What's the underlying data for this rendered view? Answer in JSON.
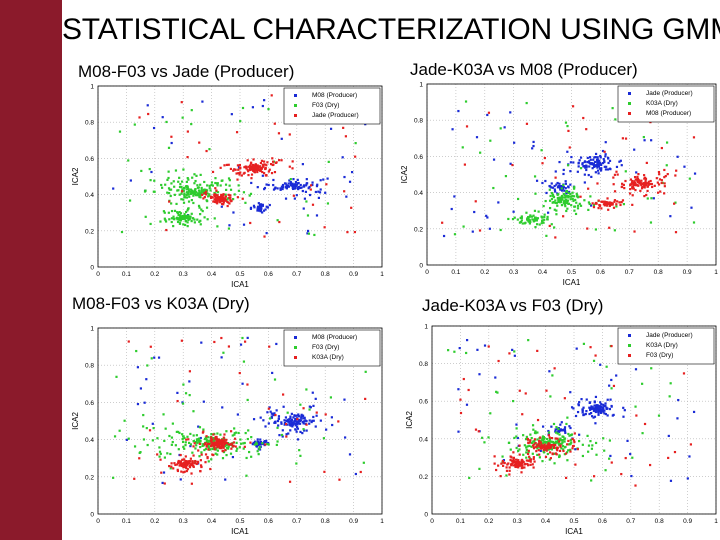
{
  "slide": {
    "title": "STATISTICAL CHARACTERIZATION USING GMM",
    "accent_color": "#8b1a2b"
  },
  "panels": {
    "p1_title": "M08-F03 vs Jade (Producer)",
    "p2_title": "Jade-K03A vs M08 (Producer)",
    "p3_title": "M08-F03 vs K03A (Dry)",
    "p4_title": "Jade-K03A vs F03 (Dry)"
  },
  "chart_data": [
    {
      "type": "scatter",
      "title": "M08-F03 vs Jade (Producer)",
      "xlabel": "ICA1",
      "ylabel": "ICA2",
      "xlim": [
        0,
        1
      ],
      "ylim": [
        0,
        1
      ],
      "xticks": [
        "0",
        "0.1",
        "0.2",
        "0.3",
        "0.4",
        "0.5",
        "0.6",
        "0.7",
        "0.8",
        "0.9",
        "1"
      ],
      "yticks": [
        "0",
        "0.2",
        "0.4",
        "0.6",
        "0.8",
        "1"
      ],
      "grid": true,
      "legend_position": "top-right",
      "series": [
        {
          "name": "M08 (Producer)",
          "color": "#1a2bd6",
          "clusters": [
            [
              0.69,
              0.45,
              0.06,
              0.025,
              60
            ],
            [
              0.57,
              0.33,
              0.02,
              0.015,
              20
            ]
          ]
        },
        {
          "name": "F03 (Dry)",
          "color": "#2ecc2e",
          "clusters": [
            [
              0.35,
              0.42,
              0.09,
              0.04,
              110
            ],
            [
              0.3,
              0.27,
              0.04,
              0.025,
              60
            ]
          ]
        },
        {
          "name": "Jade (Producer)",
          "color": "#e62020",
          "clusters": [
            [
              0.55,
              0.55,
              0.05,
              0.03,
              80
            ],
            [
              0.43,
              0.38,
              0.03,
              0.02,
              60
            ]
          ]
        }
      ]
    },
    {
      "type": "scatter",
      "title": "Jade-K03A vs M08 (Producer)",
      "xlabel": "ICA1",
      "ylabel": "ICA2",
      "xlim": [
        0,
        1
      ],
      "ylim": [
        0,
        1
      ],
      "xticks": [
        "0",
        "0.1",
        "0.2",
        "0.3",
        "0.4",
        "0.5",
        "0.6",
        "0.7",
        "0.8",
        "0.9",
        "1"
      ],
      "yticks": [
        "0",
        "0.2",
        "0.4",
        "0.6",
        "0.8",
        "1"
      ],
      "grid": true,
      "legend_position": "top-right",
      "series": [
        {
          "name": "Jade (Producer)",
          "color": "#1a2bd6",
          "clusters": [
            [
              0.58,
              0.56,
              0.05,
              0.03,
              70
            ],
            [
              0.46,
              0.43,
              0.03,
              0.02,
              30
            ]
          ]
        },
        {
          "name": "K03A (Dry)",
          "color": "#2ecc2e",
          "clusters": [
            [
              0.47,
              0.36,
              0.05,
              0.04,
              70
            ],
            [
              0.36,
              0.25,
              0.04,
              0.02,
              40
            ]
          ]
        },
        {
          "name": "M08 (Producer)",
          "color": "#e62020",
          "clusters": [
            [
              0.74,
              0.45,
              0.06,
              0.03,
              70
            ],
            [
              0.62,
              0.34,
              0.03,
              0.02,
              30
            ]
          ]
        }
      ]
    },
    {
      "type": "scatter",
      "title": "M08-F03 vs K03A (Dry)",
      "xlabel": "ICA1",
      "ylabel": "ICA2",
      "xlim": [
        0,
        1
      ],
      "ylim": [
        0,
        1
      ],
      "xticks": [
        "0",
        "0.1",
        "0.2",
        "0.3",
        "0.4",
        "0.5",
        "0.6",
        "0.7",
        "0.8",
        "0.9",
        "1"
      ],
      "yticks": [
        "0",
        "0.2",
        "0.4",
        "0.6",
        "0.8",
        "1"
      ],
      "grid": true,
      "legend_position": "top-right",
      "series": [
        {
          "name": "M08 (Producer)",
          "color": "#1a2bd6",
          "clusters": [
            [
              0.69,
              0.5,
              0.06,
              0.04,
              80
            ],
            [
              0.57,
              0.38,
              0.02,
              0.015,
              20
            ]
          ]
        },
        {
          "name": "F03 (Dry)",
          "color": "#2ecc2e",
          "clusters": [
            [
              0.4,
              0.38,
              0.12,
              0.05,
              120
            ]
          ]
        },
        {
          "name": "K03A (Dry)",
          "color": "#e62020",
          "clusters": [
            [
              0.42,
              0.38,
              0.04,
              0.03,
              70
            ],
            [
              0.31,
              0.27,
              0.04,
              0.025,
              60
            ]
          ]
        }
      ]
    },
    {
      "type": "scatter",
      "title": "Jade-K03A vs F03 (Dry)",
      "xlabel": "ICA1",
      "ylabel": "ICA2",
      "xlim": [
        0,
        1
      ],
      "ylim": [
        0,
        1
      ],
      "xticks": [
        "0",
        "0.1",
        "0.2",
        "0.3",
        "0.4",
        "0.5",
        "0.6",
        "0.7",
        "0.8",
        "0.9",
        "1"
      ],
      "yticks": [
        "0",
        "0.2",
        "0.4",
        "0.6",
        "0.8",
        "1"
      ],
      "grid": true,
      "legend_position": "top-right",
      "series": [
        {
          "name": "Jade (Producer)",
          "color": "#1a2bd6",
          "clusters": [
            [
              0.58,
              0.56,
              0.04,
              0.03,
              70
            ],
            [
              0.45,
              0.45,
              0.03,
              0.02,
              20
            ]
          ]
        },
        {
          "name": "K03A (Dry)",
          "color": "#2ecc2e",
          "clusters": [
            [
              0.42,
              0.38,
              0.1,
              0.05,
              110
            ]
          ]
        },
        {
          "name": "F03 (Dry)",
          "color": "#e62020",
          "clusters": [
            [
              0.4,
              0.36,
              0.05,
              0.03,
              70
            ],
            [
              0.3,
              0.27,
              0.04,
              0.025,
              60
            ]
          ]
        }
      ]
    }
  ]
}
